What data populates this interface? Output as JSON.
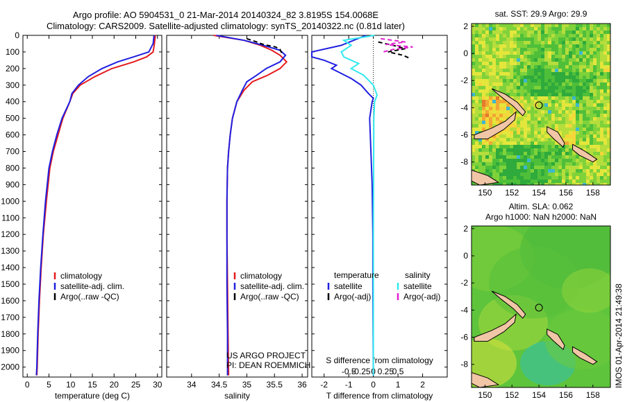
{
  "header": {
    "line1": "Argo profile: AO 5904531_0 21-Mar-2014 20140324_82 3.8195S 154.0068E",
    "line2": "Climatology: CARS2009. Satellite-adjusted climatology: synTS_20140322.nc (0.81d later)"
  },
  "credits": {
    "project": "US ARGO PROJECT",
    "pi": "PI: DEAN ROEMMICH",
    "stamp": "IMOS 01-Apr-2014 21:49:38"
  },
  "colors": {
    "climatology": "#e41a1c",
    "satellite": "#1f1fe0",
    "argo": "#000000",
    "sal_satellite": "#30e8f0",
    "sal_argo": "#e020d0",
    "land": "#f1c6a6"
  },
  "chart_data": [
    {
      "type": "line",
      "name": "temperature",
      "xlabel": "temperature (deg C)",
      "ylim": [
        2060,
        0
      ],
      "xlim": [
        -1,
        31
      ],
      "xticks": [
        "0",
        "5",
        "10",
        "15",
        "20",
        "25",
        "30"
      ],
      "xtick_values": [
        0,
        5,
        10,
        15,
        20,
        25,
        30
      ],
      "yticks": [
        "0",
        "100",
        "200",
        "300",
        "400",
        "500",
        "600",
        "700",
        "800",
        "900",
        "1000",
        "1100",
        "1200",
        "1300",
        "1400",
        "1500",
        "1600",
        "1700",
        "1800",
        "1900",
        "2000"
      ],
      "legend": [
        "climatology",
        "satellite-adj. clim.",
        "Argo(..raw -QC)"
      ],
      "series": [
        {
          "key": "climatology",
          "y": [
            0,
            50,
            100,
            130,
            160,
            200,
            250,
            300,
            350,
            400,
            500,
            600,
            700,
            800,
            1000,
            1200,
            1400,
            1600,
            1800,
            2000,
            2050
          ],
          "x": [
            29.5,
            29.3,
            29,
            27.5,
            24.5,
            19.5,
            15.5,
            12.2,
            10.5,
            9.8,
            8.2,
            7.1,
            6.0,
            5.2,
            4.4,
            3.7,
            3.2,
            2.8,
            2.5,
            2.3,
            2.2
          ]
        },
        {
          "key": "satellite",
          "y": [
            0,
            50,
            100,
            130,
            160,
            200,
            250,
            300,
            350,
            400,
            500,
            600,
            700,
            800,
            1000,
            1200,
            1400,
            1600,
            1800,
            2000,
            2050
          ],
          "x": [
            29.2,
            29.0,
            28.0,
            24.5,
            20.8,
            17.2,
            14.0,
            11.8,
            10.3,
            9.8,
            8.0,
            6.8,
            5.8,
            5.0,
            4.2,
            3.6,
            3.1,
            2.7,
            2.4,
            2.2,
            2.1
          ]
        }
      ]
    },
    {
      "type": "line",
      "name": "salinity",
      "xlabel": "salinity",
      "ylim": [
        2060,
        0
      ],
      "xlim": [
        33.55,
        36.1
      ],
      "xticks": [
        "34",
        "34.5",
        "35",
        "35.5",
        "36"
      ],
      "xtick_values": [
        34,
        34.5,
        35,
        35.5,
        36
      ],
      "legend": [
        "climatology",
        "satellite-adj. clim.",
        "Argo(..raw -QC)"
      ],
      "series": [
        {
          "key": "climatology",
          "y": [
            0,
            30,
            60,
            90,
            120,
            160,
            200,
            240,
            280,
            330,
            400,
            500,
            600,
            700,
            800,
            1000,
            1200,
            1500,
            1800,
            2050
          ],
          "x": [
            34.4,
            34.95,
            35.25,
            35.45,
            35.6,
            35.72,
            35.6,
            35.38,
            35.1,
            34.95,
            34.82,
            34.74,
            34.7,
            34.67,
            34.65,
            34.64,
            34.64,
            34.65,
            34.66,
            34.67
          ]
        },
        {
          "key": "satellite",
          "y": [
            0,
            30,
            60,
            90,
            120,
            160,
            200,
            240,
            280,
            330,
            400,
            500,
            600,
            700,
            800,
            1000,
            1200,
            1500,
            1800,
            2050
          ],
          "x": [
            34.45,
            34.95,
            35.3,
            35.6,
            35.7,
            35.6,
            35.35,
            35.18,
            35.0,
            34.92,
            34.82,
            34.74,
            34.7,
            34.67,
            34.65,
            34.64,
            34.64,
            34.64,
            34.65,
            34.65
          ]
        },
        {
          "key": "argo",
          "dashed": true,
          "y": [
            20,
            40,
            55,
            70,
            85,
            100,
            115
          ],
          "x": [
            35.0,
            35.18,
            35.3,
            35.52,
            35.6,
            35.62,
            35.65
          ]
        }
      ]
    },
    {
      "type": "line",
      "name": "difference",
      "xlabel": "T difference from climatology",
      "toplabel": "S difference from climatology",
      "ylim": [
        2060,
        0
      ],
      "xlim": [
        -2.5,
        3.0
      ],
      "xticks": [
        "-2",
        "-1",
        "0",
        "1",
        "2"
      ],
      "xtick_values": [
        -2,
        -1,
        0,
        1,
        2
      ],
      "sticks": [
        "-0.5",
        "-0.25",
        "0",
        "0.25",
        "0.5"
      ],
      "stick_values": [
        -1.0,
        -0.5,
        0,
        0.5,
        1.0
      ],
      "legend_left_title": "temperature",
      "legend_right_title": "salinity",
      "legend_left": [
        "satellite",
        "Argo(-adj)"
      ],
      "legend_right": [
        "satellite",
        "Argo(-adj)"
      ],
      "series": [
        {
          "key": "satellite",
          "y": [
            0,
            60,
            100,
            130,
            150,
            180,
            200,
            230,
            260,
            300,
            350,
            380,
            400,
            500,
            700,
            900,
            1200,
            1500,
            1800,
            2050
          ],
          "x": [
            -0.3,
            -1.3,
            -2.5,
            -2.5,
            -2.0,
            -1.5,
            -1.7,
            -1.3,
            -0.9,
            -0.5,
            -0.2,
            0,
            -0.05,
            -0.15,
            -0.1,
            -0.05,
            -0.02,
            -0.02,
            -0.01,
            0
          ]
        },
        {
          "key": "sal_satellite",
          "y": [
            0,
            30,
            60,
            100,
            130,
            170,
            200,
            240,
            300,
            360,
            400,
            500,
            800,
            1200,
            1600,
            2050
          ],
          "x": [
            0.05,
            -1.2,
            -0.9,
            -1.3,
            -1.2,
            -0.6,
            -0.9,
            -0.4,
            0,
            0.15,
            0.05,
            0.02,
            0.01,
            0,
            0,
            0
          ]
        },
        {
          "key": "argo",
          "dashed": true,
          "y": [
            40,
            60,
            80,
            100,
            120,
            140
          ],
          "x": [
            0.2,
            0.8,
            1.3,
            0.6,
            1.2,
            1.5
          ]
        },
        {
          "key": "sal_argo",
          "dashed": true,
          "y": [
            20,
            40,
            55,
            70,
            85,
            100
          ],
          "x": [
            0.3,
            1.3,
            0.5,
            1.6,
            0.8,
            0.4
          ]
        }
      ]
    },
    {
      "type": "heatmap",
      "name": "sst_map",
      "title": "sat. SST: 29.9 Argo: 29.9",
      "xticks": [
        "150",
        "152",
        "154",
        "156",
        "158"
      ],
      "xtick_values": [
        150,
        152,
        154,
        156,
        158
      ],
      "yticks": [
        "2",
        "0",
        "-2",
        "-4",
        "-6",
        "-8"
      ],
      "ytick_values": [
        2,
        0,
        -2,
        -4,
        -6,
        -8
      ],
      "xlim": [
        149,
        159.3
      ],
      "ylim": [
        -9.7,
        2.2
      ],
      "marker": [
        154.0,
        -3.82
      ]
    },
    {
      "type": "heatmap",
      "name": "sla_map",
      "title": "Altim. SLA: 0.062",
      "subtitle": "Argo h1000: NaN h2000: NaN",
      "xticks": [
        "150",
        "152",
        "154",
        "156",
        "158"
      ],
      "xtick_values": [
        150,
        152,
        154,
        156,
        158
      ],
      "yticks": [
        "2",
        "0",
        "-2",
        "-4",
        "-6",
        "-8"
      ],
      "ytick_values": [
        2,
        0,
        -2,
        -4,
        -6,
        -8
      ],
      "xlim": [
        149,
        159.3
      ],
      "ylim": [
        -9.7,
        2.2
      ],
      "marker": [
        154.0,
        -3.82
      ]
    }
  ]
}
